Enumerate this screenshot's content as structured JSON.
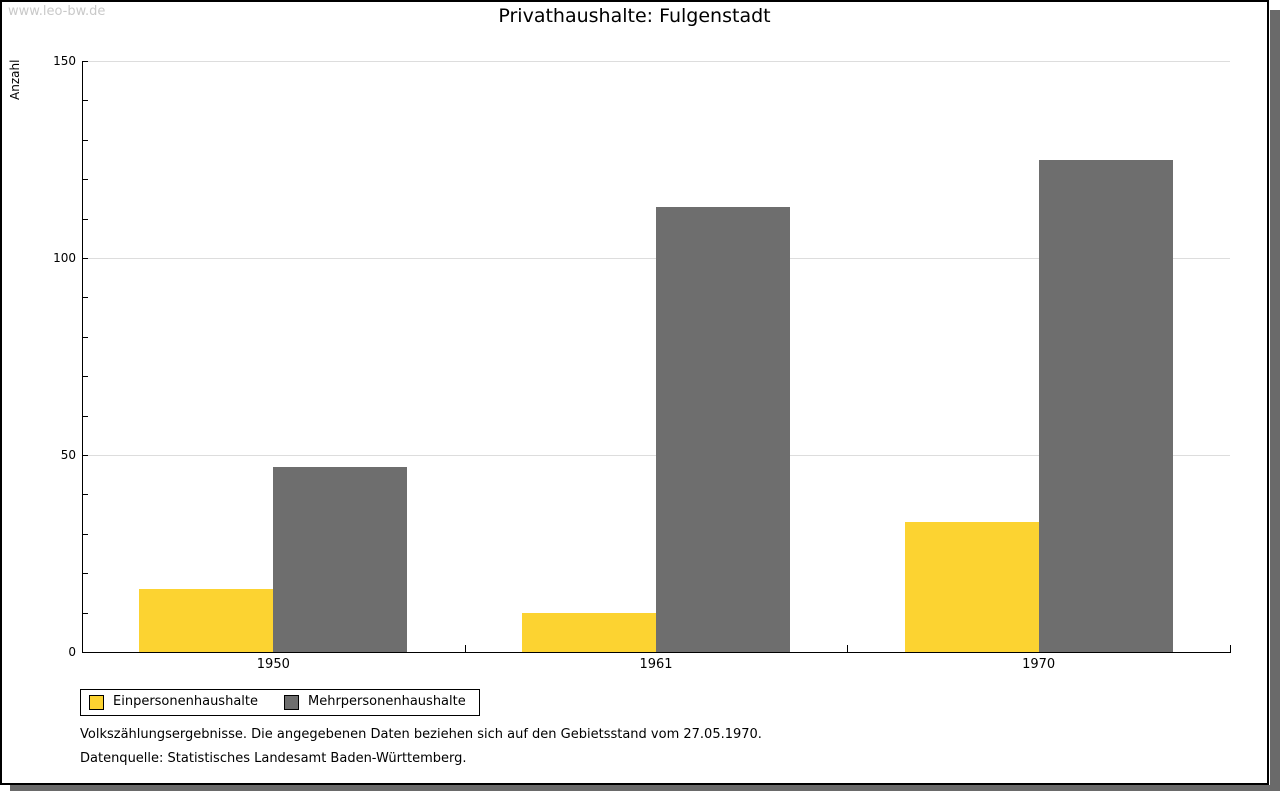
{
  "watermark": "www.leo-bw.de",
  "footnotes": [
    "Volkszählungsergebnisse. Die angegebenen Daten beziehen sich auf den Gebietsstand vom 27.05.1970.",
    "Datenquelle: Statistisches Landesamt Baden-Württemberg."
  ],
  "chart_data": {
    "type": "bar",
    "title": "Privathaushalte: Fulgenstadt",
    "ylabel": "Anzahl",
    "xlabel": "",
    "categories": [
      "1950",
      "1961",
      "1970"
    ],
    "series": [
      {
        "name": "Einpersonenhaushalte",
        "color": "#fcd331",
        "values": [
          16,
          10,
          33
        ]
      },
      {
        "name": "Mehrpersonenhaushalte",
        "color": "#6e6e6e",
        "values": [
          47,
          113,
          125
        ]
      }
    ],
    "ylim": [
      0,
      150
    ],
    "yticks": [
      0,
      50,
      100,
      150
    ],
    "minor_tick_step": 10,
    "grid": true,
    "gridline_color": "#dddddd",
    "legend_position": "bottom-left"
  }
}
